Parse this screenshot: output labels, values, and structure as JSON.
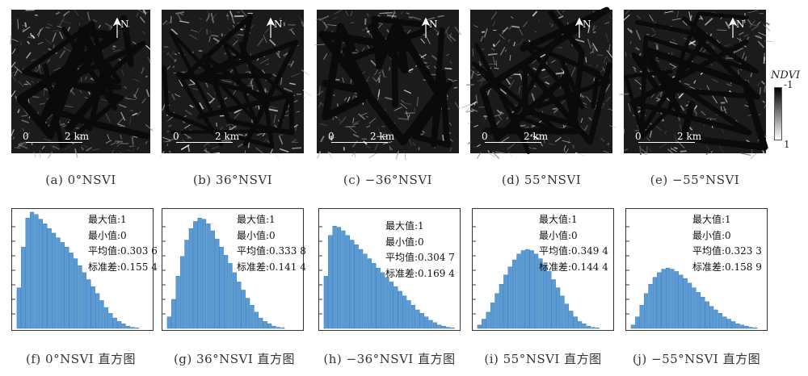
{
  "colors": {
    "image_background": "#1b1b1b",
    "histogram_bar": "#5b9bd5",
    "histogram_bar_edge": "#2f6fa8"
  },
  "legend": {
    "title": "NDVI",
    "max_label": "-1",
    "min_label": "1"
  },
  "north_label": "N",
  "scale": {
    "start": "0",
    "end": "2 km"
  },
  "image_captions": [
    "(a) 0°NSVI",
    "(b) 36°NSVI",
    "(c) −36°NSVI",
    "(d) 55°NSVI",
    "(e) −55°NSVI"
  ],
  "histogram_captions": [
    "(f) 0°NSVI 直方图",
    "(g) 36°NSVI 直方图",
    "(h) −36°NSVI 直方图",
    "(i) 55°NSVI 直方图",
    "(j) −55°NSVI 直方图"
  ],
  "stats_labels": {
    "max": "最大值:",
    "min": "最小值:",
    "mean": "平均值:",
    "std": "标准差:"
  },
  "histograms": [
    {
      "max": "1",
      "min": "0",
      "mean": "0.303 6",
      "std": "0.155 4"
    },
    {
      "max": "1",
      "min": "0",
      "mean": "0.333 8",
      "std": "0.141 4"
    },
    {
      "max": "1",
      "min": "0",
      "mean": "0.304 7",
      "std": "0.169 4"
    },
    {
      "max": "1",
      "min": "0",
      "mean": "0.349 4",
      "std": "0.144 4"
    },
    {
      "max": "1",
      "min": "0",
      "mean": "0.323 3",
      "std": "0.158 9"
    }
  ],
  "chart_data": [
    {
      "type": "bar",
      "series": [
        {
          "values": [
            0.35,
            0.7,
            0.95,
            1.0,
            0.98,
            0.94,
            0.9,
            0.86,
            0.82,
            0.78,
            0.74,
            0.7,
            0.65,
            0.6,
            0.54,
            0.48,
            0.42,
            0.36,
            0.3,
            0.24,
            0.18,
            0.13,
            0.09,
            0.06,
            0.04,
            0.02,
            0.01,
            0.005,
            0,
            0
          ]
        }
      ],
      "ylim": [
        0,
        1
      ]
    },
    {
      "type": "bar",
      "series": [
        {
          "values": [
            0.1,
            0.25,
            0.45,
            0.62,
            0.76,
            0.86,
            0.92,
            0.95,
            0.94,
            0.9,
            0.84,
            0.77,
            0.7,
            0.63,
            0.56,
            0.48,
            0.4,
            0.33,
            0.26,
            0.2,
            0.14,
            0.09,
            0.06,
            0.04,
            0.02,
            0.01,
            0.005,
            0,
            0,
            0
          ]
        }
      ],
      "ylim": [
        0,
        1
      ]
    },
    {
      "type": "bar",
      "series": [
        {
          "values": [
            0.45,
            0.8,
            0.88,
            0.87,
            0.84,
            0.8,
            0.76,
            0.72,
            0.68,
            0.64,
            0.6,
            0.56,
            0.52,
            0.48,
            0.44,
            0.4,
            0.36,
            0.32,
            0.28,
            0.24,
            0.2,
            0.16,
            0.13,
            0.1,
            0.07,
            0.05,
            0.03,
            0.02,
            0.01,
            0.005
          ]
        }
      ],
      "ylim": [
        0,
        1
      ]
    },
    {
      "type": "bar",
      "series": [
        {
          "values": [
            0.03,
            0.08,
            0.14,
            0.22,
            0.3,
            0.38,
            0.46,
            0.53,
            0.59,
            0.64,
            0.67,
            0.68,
            0.67,
            0.64,
            0.6,
            0.55,
            0.49,
            0.42,
            0.35,
            0.28,
            0.21,
            0.15,
            0.1,
            0.06,
            0.04,
            0.02,
            0.01,
            0.005,
            0,
            0
          ]
        }
      ],
      "ylim": [
        0,
        1
      ]
    },
    {
      "type": "bar",
      "series": [
        {
          "values": [
            0.03,
            0.1,
            0.2,
            0.3,
            0.38,
            0.44,
            0.48,
            0.51,
            0.52,
            0.51,
            0.49,
            0.46,
            0.43,
            0.39,
            0.35,
            0.31,
            0.27,
            0.23,
            0.19,
            0.16,
            0.13,
            0.1,
            0.08,
            0.06,
            0.04,
            0.03,
            0.02,
            0.01,
            0.005,
            0
          ]
        }
      ],
      "ylim": [
        0,
        1
      ]
    }
  ]
}
